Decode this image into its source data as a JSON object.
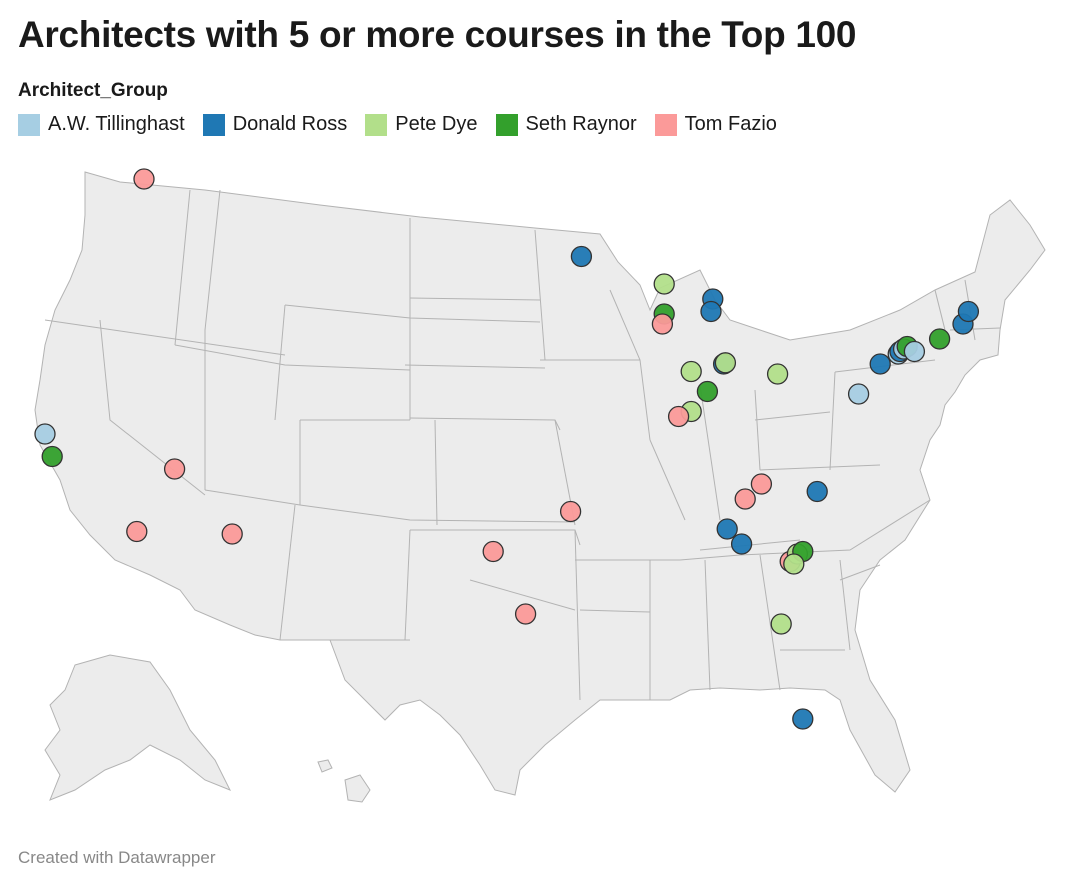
{
  "header": {
    "title": "Architects with 5 or more courses in the Top 100"
  },
  "legend": {
    "title": "Architect_Group",
    "items": [
      {
        "label": "A.W. Tillinghast",
        "color": "#a6cee3"
      },
      {
        "label": "Donald Ross",
        "color": "#1f78b4"
      },
      {
        "label": "Pete Dye",
        "color": "#b2df8a"
      },
      {
        "label": "Seth Raynor",
        "color": "#33a02c"
      },
      {
        "label": "Tom Fazio",
        "color": "#fb9a99"
      }
    ]
  },
  "map": {
    "region": "United States",
    "courses": [
      {
        "group": "Tom Fazio",
        "lon": -116.8,
        "lat": 47.7
      },
      {
        "group": "A.W. Tillinghast",
        "lon": -122.3,
        "lat": 37.5
      },
      {
        "group": "Seth Raynor",
        "lon": -121.9,
        "lat": 36.6
      },
      {
        "group": "Tom Fazio",
        "lon": -115.1,
        "lat": 36.1
      },
      {
        "group": "Tom Fazio",
        "lon": -117.2,
        "lat": 33.6
      },
      {
        "group": "Tom Fazio",
        "lon": -111.9,
        "lat": 33.5
      },
      {
        "group": "Tom Fazio",
        "lon": -97.4,
        "lat": 32.8
      },
      {
        "group": "Tom Fazio",
        "lon": -95.6,
        "lat": 30.3
      },
      {
        "group": "Tom Fazio",
        "lon": -93.1,
        "lat": 34.4
      },
      {
        "group": "Donald Ross",
        "lon": -92.5,
        "lat": 44.6
      },
      {
        "group": "Pete Dye",
        "lon": -87.9,
        "lat": 43.5
      },
      {
        "group": "Seth Raynor",
        "lon": -87.9,
        "lat": 42.3
      },
      {
        "group": "Tom Fazio",
        "lon": -88.0,
        "lat": 41.9
      },
      {
        "group": "Donald Ross",
        "lon": -85.2,
        "lat": 42.9
      },
      {
        "group": "Donald Ross",
        "lon": -85.3,
        "lat": 42.4
      },
      {
        "group": "Pete Dye",
        "lon": -86.4,
        "lat": 40.0
      },
      {
        "group": "Donald Ross",
        "lon": -84.6,
        "lat": 40.3
      },
      {
        "group": "Pete Dye",
        "lon": -84.5,
        "lat": 40.35
      },
      {
        "group": "Seth Raynor",
        "lon": -85.5,
        "lat": 39.2
      },
      {
        "group": "Pete Dye",
        "lon": -86.4,
        "lat": 38.4
      },
      {
        "group": "Tom Fazio",
        "lon": -87.1,
        "lat": 38.2
      },
      {
        "group": "Pete Dye",
        "lon": -81.6,
        "lat": 39.9
      },
      {
        "group": "A.W. Tillinghast",
        "lon": -77.1,
        "lat": 39.1
      },
      {
        "group": "Donald Ross",
        "lon": -75.9,
        "lat": 40.3
      },
      {
        "group": "A.W. Tillinghast",
        "lon": -74.9,
        "lat": 40.7
      },
      {
        "group": "Donald Ross",
        "lon": -74.8,
        "lat": 40.8
      },
      {
        "group": "A.W. Tillinghast",
        "lon": -74.6,
        "lat": 40.9
      },
      {
        "group": "Seth Raynor",
        "lon": -74.4,
        "lat": 41.0
      },
      {
        "group": "A.W. Tillinghast",
        "lon": -74.0,
        "lat": 40.8
      },
      {
        "group": "Seth Raynor",
        "lon": -72.6,
        "lat": 41.3
      },
      {
        "group": "Donald Ross",
        "lon": -71.3,
        "lat": 41.9
      },
      {
        "group": "Donald Ross",
        "lon": -71.0,
        "lat": 42.4
      },
      {
        "group": "Tom Fazio",
        "lon": -82.5,
        "lat": 35.5
      },
      {
        "group": "Tom Fazio",
        "lon": -83.4,
        "lat": 34.9
      },
      {
        "group": "Donald Ross",
        "lon": -79.4,
        "lat": 35.2
      },
      {
        "group": "Donald Ross",
        "lon": -84.4,
        "lat": 33.7
      },
      {
        "group": "Donald Ross",
        "lon": -83.6,
        "lat": 33.1
      },
      {
        "group": "Tom Fazio",
        "lon": -80.9,
        "lat": 32.4
      },
      {
        "group": "Pete Dye",
        "lon": -80.5,
        "lat": 32.7
      },
      {
        "group": "Seth Raynor",
        "lon": -80.2,
        "lat": 32.8
      },
      {
        "group": "Pete Dye",
        "lon": -80.7,
        "lat": 32.3
      },
      {
        "group": "Pete Dye",
        "lon": -81.4,
        "lat": 29.9
      },
      {
        "group": "Donald Ross",
        "lon": -80.2,
        "lat": 26.1
      }
    ]
  },
  "footer": {
    "credit": "Created with Datawrapper"
  }
}
